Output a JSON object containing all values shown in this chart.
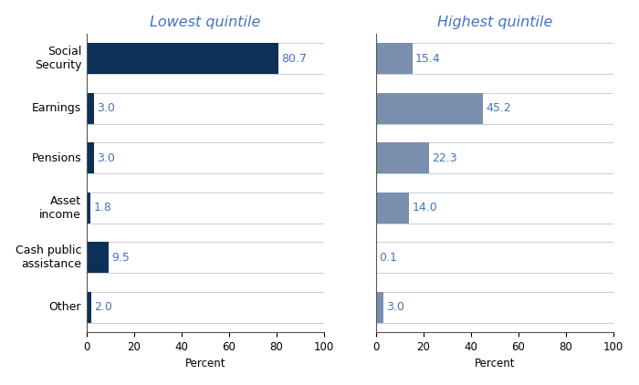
{
  "left_title": "Lowest quintile",
  "right_title": "Highest quintile",
  "categories": [
    "Social\nSecurity",
    "Earnings",
    "Pensions",
    "Asset\nincome",
    "Cash public\nassistance",
    "Other"
  ],
  "left_values": [
    80.7,
    3.0,
    3.0,
    1.8,
    9.5,
    2.0
  ],
  "right_values": [
    15.4,
    45.2,
    22.3,
    14.0,
    0.1,
    3.0
  ],
  "left_bar_color": "#0D3057",
  "right_bar_color": "#7A8EAD",
  "bg_bar_color": "#FFFFFF",
  "bg_edge_color": "#C8CDD6",
  "label_color": "#4472C4",
  "xlabel": "Percent",
  "xlim": [
    0,
    100
  ],
  "xticks": [
    0,
    20,
    40,
    60,
    80,
    100
  ],
  "title_color": "#4472C4",
  "title_fontsize": 11.5,
  "label_fontsize": 9,
  "tick_fontsize": 8.5,
  "value_fontsize": 9
}
